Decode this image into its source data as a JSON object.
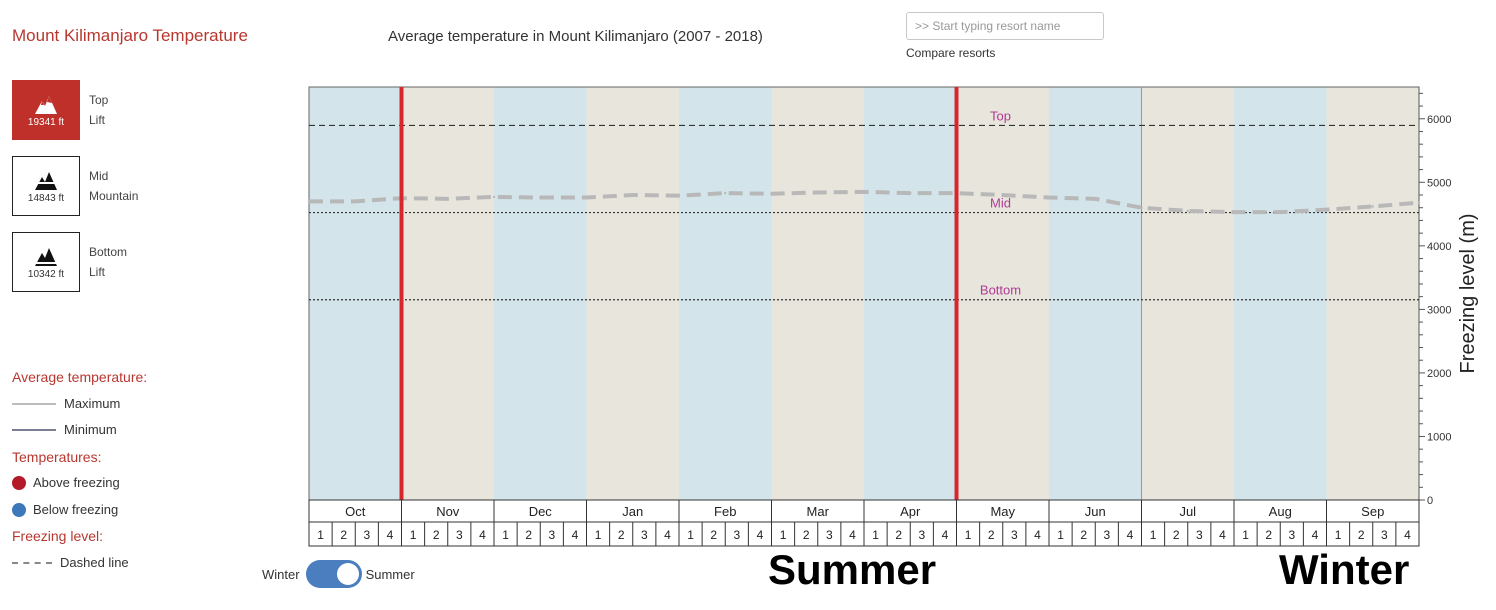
{
  "header": {
    "title": "Mount Kilimanjaro Temperature",
    "subtitle": "Average temperature in Mount Kilimanjaro (2007 - 2018)",
    "search_placeholder": ">> Start typing resort name",
    "compare_label": "Compare resorts"
  },
  "lifts": [
    {
      "height": "19341 ft",
      "line1": "Top",
      "line2": "Lift",
      "active": true
    },
    {
      "height": "14843 ft",
      "line1": "Mid",
      "line2": "Mountain",
      "active": false
    },
    {
      "height": "10342 ft",
      "line1": "Bottom",
      "line2": "Lift",
      "active": false
    }
  ],
  "legend": {
    "avg_heading": "Average temperature:",
    "maximum": "Maximum",
    "minimum": "Minimum",
    "temps_heading": "Temperatures:",
    "above": "Above freezing",
    "below": "Below freezing",
    "freezing_heading": "Freezing level:",
    "dashed": "Dashed line"
  },
  "colors": {
    "accent": "#b8372f",
    "band_blue": "#d3e5ea",
    "band_beige": "#e8e6dc",
    "freezing_line": "#b8b8b8",
    "marker": "#d8262d",
    "ref_label": "#b03a96",
    "toggle": "#4a7ebf",
    "above_dot": "#b31b2a",
    "below_dot": "#3d79b8"
  },
  "toggle": {
    "left": "Winter",
    "right": "Summer"
  },
  "season_labels": {
    "summer": "Summer",
    "winter": "Winter"
  },
  "chart_data": {
    "type": "line",
    "ylabel": "Freezing level (m)",
    "ylim": [
      0,
      6500
    ],
    "y_ticks": [
      0,
      1000,
      2000,
      3000,
      4000,
      5000,
      6000
    ],
    "months": [
      "Oct",
      "Nov",
      "Dec",
      "Jan",
      "Feb",
      "Mar",
      "Apr",
      "May",
      "Jun",
      "Jul",
      "Aug",
      "Sep"
    ],
    "weeks": [
      "1",
      "2",
      "3",
      "4"
    ],
    "series": [
      {
        "style": "dashed",
        "x_weeks": [
          0,
          2,
          4,
          6,
          8,
          10,
          12,
          14,
          16,
          18,
          20,
          22,
          24,
          26,
          28,
          30,
          32,
          34,
          36,
          38,
          40,
          42,
          44,
          46,
          48
        ],
        "values": [
          4700,
          4700,
          4750,
          4740,
          4770,
          4760,
          4760,
          4800,
          4790,
          4830,
          4820,
          4840,
          4850,
          4830,
          4830,
          4800,
          4760,
          4740,
          4600,
          4550,
          4530,
          4530,
          4570,
          4620,
          4680
        ]
      }
    ],
    "reference_lines": [
      {
        "label": "Top",
        "value": 5895,
        "style": "dashed"
      },
      {
        "label": "Mid",
        "value": 4524,
        "style": "dotted"
      },
      {
        "label": "Bottom",
        "value": 3152,
        "style": "dotted"
      }
    ],
    "season_markers_weeks": [
      4,
      28
    ]
  }
}
